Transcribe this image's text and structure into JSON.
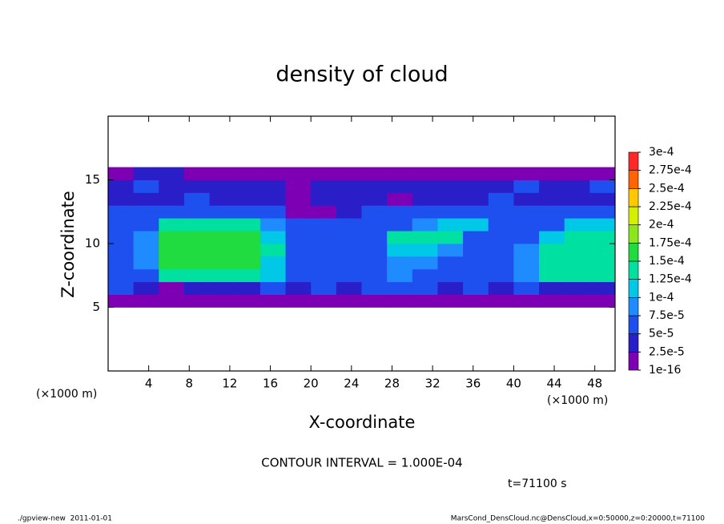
{
  "chart_data": {
    "type": "heatmap",
    "title": "density of cloud",
    "x_label": "X-coordinate",
    "y_label": "Z-coordinate",
    "x_unit": "(×1000 m)",
    "y_unit": "(×1000 m)",
    "contour_note": "CONTOUR INTERVAL = 1.000E-04",
    "time_note": "t=71100 s",
    "footer_left": "./gpview-new  2011-01-01",
    "footer_right": "MarsCond_DensCloud.nc@DensCloud,x=0:50000,z=0:20000,t=71100",
    "xlim": [
      0,
      50
    ],
    "ylim": [
      0,
      20
    ],
    "xticks": [
      4,
      8,
      12,
      16,
      20,
      24,
      28,
      32,
      36,
      40,
      44,
      48
    ],
    "yticks": [
      5,
      10,
      15
    ],
    "x": [
      0,
      2.5,
      5,
      7.5,
      10,
      12.5,
      15,
      17.5,
      20,
      22.5,
      25,
      27.5,
      30,
      32.5,
      35,
      37.5,
      40,
      42.5,
      45,
      47.5,
      50
    ],
    "y": [
      5,
      6,
      7,
      8,
      9,
      10,
      11,
      12,
      13,
      14,
      15,
      16
    ],
    "values": [
      [
        1e-05,
        1e-05,
        1e-05,
        1e-05,
        1e-05,
        1e-05,
        1e-05,
        1e-05,
        1e-05,
        1e-05,
        1e-05,
        1e-05,
        1e-05,
        1e-05,
        1e-05,
        1e-05,
        1e-05,
        1e-05,
        1e-05,
        1e-05
      ],
      [
        5e-05,
        4e-05,
        2e-05,
        3e-05,
        3e-05,
        3e-05,
        5e-05,
        4e-05,
        5e-05,
        4e-05,
        5e-05,
        6e-05,
        5e-05,
        4e-05,
        5e-05,
        4e-05,
        5e-05,
        3e-05,
        3e-05,
        4e-05
      ],
      [
        6e-05,
        7e-05,
        0.00014,
        0.00014,
        0.00014,
        0.00014,
        0.0001,
        6e-05,
        6e-05,
        6e-05,
        7e-05,
        8e-05,
        7e-05,
        6e-05,
        7e-05,
        6e-05,
        8e-05,
        0.000135,
        0.000135,
        0.00013
      ],
      [
        7e-05,
        9e-05,
        0.00015,
        0.00015,
        0.00015,
        0.00015,
        0.00012,
        7e-05,
        7e-05,
        6e-05,
        7e-05,
        8e-05,
        9e-05,
        7e-05,
        7e-05,
        6e-05,
        8e-05,
        0.00014,
        0.00014,
        0.00014
      ],
      [
        7e-05,
        9e-05,
        0.000155,
        0.000155,
        0.000155,
        0.000155,
        0.00013,
        7e-05,
        6e-05,
        6e-05,
        7e-05,
        0.0001,
        0.00012,
        8e-05,
        7e-05,
        6e-05,
        9e-05,
        0.000145,
        0.000145,
        0.00014
      ],
      [
        6e-05,
        8e-05,
        0.00016,
        0.00016,
        0.00016,
        0.000155,
        0.00012,
        6e-05,
        5e-05,
        5e-05,
        6e-05,
        0.00013,
        0.00013,
        0.00013,
        7e-05,
        6e-05,
        7e-05,
        0.0001,
        0.00014,
        0.00013
      ],
      [
        5e-05,
        6e-05,
        0.00014,
        0.00014,
        0.00014,
        0.00014,
        8e-05,
        5e-05,
        5e-05,
        5e-05,
        6e-05,
        7e-05,
        9e-05,
        0.00012,
        0.00011,
        6e-05,
        6e-05,
        7e-05,
        0.00011,
        0.00011
      ],
      [
        5e-05,
        5e-05,
        7e-05,
        7e-05,
        7e-05,
        7e-05,
        5e-05,
        2e-05,
        2e-05,
        4e-05,
        5e-05,
        5e-05,
        5e-05,
        6e-05,
        5e-05,
        5e-05,
        5e-05,
        6e-05,
        6e-05,
        5e-05
      ],
      [
        4e-05,
        4e-05,
        4e-05,
        5e-05,
        4e-05,
        4e-05,
        3e-05,
        2e-05,
        3e-05,
        4e-05,
        3e-05,
        2e-05,
        4e-05,
        4e-05,
        4e-05,
        5e-05,
        4e-05,
        4e-05,
        4e-05,
        4e-05
      ],
      [
        4e-05,
        5e-05,
        4e-05,
        4e-05,
        3e-05,
        4e-05,
        4e-05,
        2e-05,
        3e-05,
        4e-05,
        4e-05,
        3e-05,
        4e-05,
        4e-05,
        3e-05,
        4e-05,
        5e-05,
        4e-05,
        4e-05,
        5e-05
      ],
      [
        1e-05,
        3e-05,
        3e-05,
        1e-05,
        1e-05,
        1e-05,
        1e-05,
        1e-05,
        1e-05,
        1e-05,
        1e-05,
        1e-05,
        1e-05,
        1e-05,
        1e-05,
        1e-05,
        1e-05,
        1e-05,
        1e-05,
        1e-05
      ]
    ],
    "colorbar_ticks": [
      1e-16,
      {
        "value": 2.5e-05,
        "label": "2.5e-5"
      },
      {
        "value": 5e-05,
        "label": "5e-5"
      },
      {
        "value": 7.5e-05,
        "label": "7.5e-5"
      },
      {
        "value": 0.0001,
        "label": "1e-4"
      },
      {
        "value": 0.000125,
        "label": "1.25e-4"
      },
      {
        "value": 0.00015,
        "label": "1.5e-4"
      },
      {
        "value": 0.000175,
        "label": "1.75e-4"
      },
      {
        "value": 0.0002,
        "label": "2e-4"
      },
      {
        "value": 0.000225,
        "label": "2.25e-4"
      },
      {
        "value": 0.00025,
        "label": "2.5e-4"
      },
      {
        "value": 0.000275,
        "label": "2.75e-4"
      },
      {
        "value": 0.0003,
        "label": "3e-4"
      }
    ],
    "colorbar_colors": [
      "#7d00b4",
      "#2a1ec8",
      "#1e50f0",
      "#1e8cff",
      "#00c8e6",
      "#00e0a0",
      "#20dc40",
      "#8ce61e",
      "#d2f000",
      "#ffc800",
      "#ff6400",
      "#ff2828"
    ],
    "colorbar_top_color": "#ff9696"
  }
}
